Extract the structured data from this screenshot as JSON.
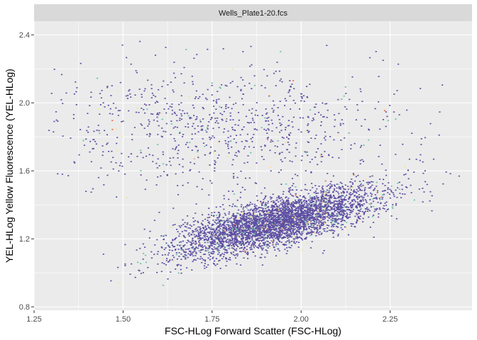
{
  "chart_data": {
    "type": "scatter",
    "title": "",
    "facet_label": "Wells_Plate1-20.fcs",
    "xlabel": "FSC-HLog Forward Scatter (FSC-HLog)",
    "ylabel": "YEL-HLog Yellow Fluorescence (YEL-HLog)",
    "xlim": [
      1.25,
      2.48
    ],
    "ylim": [
      0.78,
      2.48
    ],
    "x_ticks": [
      1.25,
      1.5,
      1.75,
      2.0,
      2.25
    ],
    "x_tick_labels": [
      "1.25",
      "1.50",
      "1.75",
      "2.00",
      "2.25"
    ],
    "y_ticks": [
      0.8,
      1.2,
      1.6,
      2.0,
      2.4
    ],
    "y_tick_labels": [
      "0.8",
      "1.2",
      "1.6",
      "2.0",
      "2.4"
    ],
    "grid": true,
    "legend": "none",
    "colors": {
      "panel": "#ebebeb",
      "grid": "#ffffff",
      "strip": "#d9d9d9",
      "density_low": "#5e4fa2",
      "density_mid": "#66c2a5",
      "density_high": "#fee08b",
      "density_top": "#f46d43"
    },
    "populations": [
      {
        "name": "",
        "cx": 1.93,
        "cy": 1.3,
        "sx": 0.14,
        "sy": 0.1,
        "rho": 0.72,
        "n": 4200
      },
      {
        "name": "",
        "cx": 1.78,
        "cy": 1.85,
        "sx": 0.26,
        "sy": 0.19,
        "rho": 0.0,
        "n": 900
      }
    ]
  }
}
